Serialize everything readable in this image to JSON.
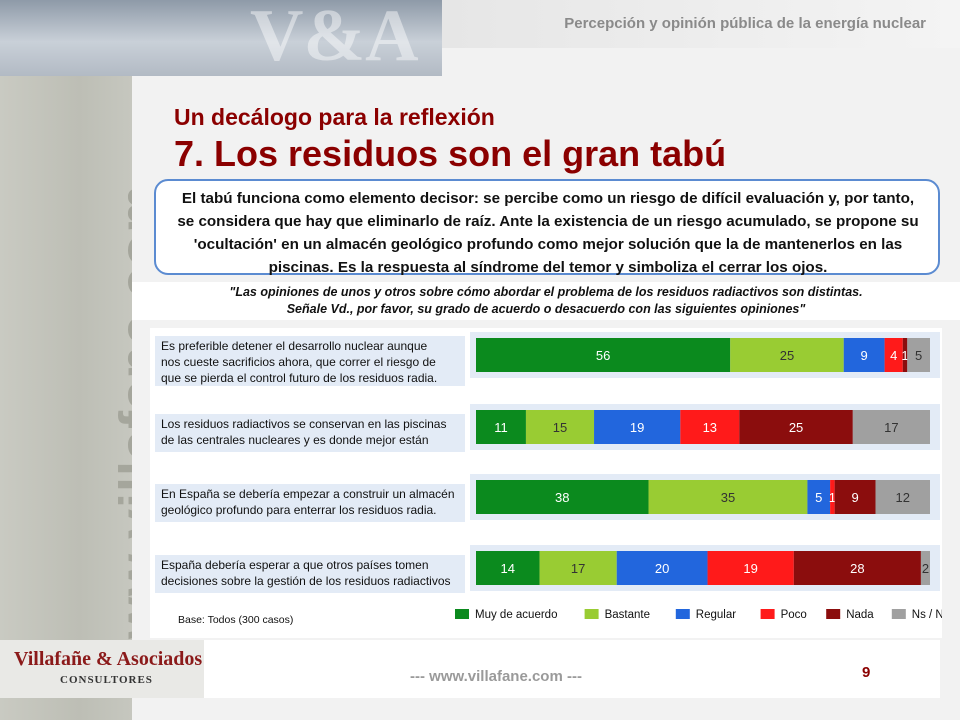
{
  "header": {
    "title": "Percepción y opinión pública de la energía nuclear"
  },
  "sidebar": {
    "vertical_text": "www.villafane.com"
  },
  "slide": {
    "subtitle": "Un decálogo para la reflexión",
    "title": "7. Los residuos son el gran tabú",
    "intro_lines": [
      "El tabú funciona como elemento decisor: se percibe como un riesgo de difícil evaluación y, por tanto,",
      "se considera que hay que eliminarlo de raíz. Ante la existencia de un riesgo acumulado, se propone su",
      "'ocultación' en un almacén geológico profundo como mejor solución que la de mantenerlos en las",
      "piscinas. Es la respuesta al síndrome del temor y simboliza el cerrar los ojos."
    ],
    "question_lines": [
      "\"Las opiniones de unos y otros sobre cómo abordar el problema de los residuos radiactivos son distintas.",
      "Señale Vd., por favor, su grado de acuerdo o desacuerdo con las siguientes opiniones\""
    ],
    "base_note": "Base: Todos (300 casos)"
  },
  "chart_data": {
    "type": "bar",
    "orientation": "horizontal",
    "stacked": true,
    "categories": [
      [
        "Es preferible detener el desarrollo nuclear aunque",
        "nos cueste sacrificios ahora, que correr el riesgo de",
        "que se pierda el control futuro de los residuos radia."
      ],
      [
        "Los residuos radiactivos se conservan en las piscinas",
        "de las centrales nucleares y es donde mejor están"
      ],
      [
        "En España se debería empezar a construir un almacén",
        "geológico profundo para enterrar los residuos radia."
      ],
      [
        "España debería esperar a que otros países tomen",
        "decisiones sobre la gestión de los residuos radiactivos"
      ]
    ],
    "series": [
      {
        "name": "Muy de acuerdo",
        "color": "#0b8a1e",
        "values": [
          56,
          11,
          38,
          14
        ]
      },
      {
        "name": "Bastante",
        "color": "#99cc33",
        "values": [
          25,
          15,
          35,
          17
        ]
      },
      {
        "name": "Regular",
        "color": "#2266dd",
        "values": [
          9,
          19,
          5,
          20
        ]
      },
      {
        "name": "Poco",
        "color": "#ff1a1a",
        "values": [
          4,
          13,
          1,
          19
        ]
      },
      {
        "name": "Nada",
        "color": "#8b0d0d",
        "values": [
          1,
          25,
          9,
          28
        ]
      },
      {
        "name": "Ns / Nc",
        "color": "#a0a0a0",
        "values": [
          5,
          17,
          12,
          2
        ]
      }
    ],
    "legend_position": "bottom-right"
  },
  "footer": {
    "logo_name": "Villafañe & Asociados",
    "logo_tagline": "CONSULTORES",
    "url": "--- www.villafane.com ---",
    "page_number": "9"
  }
}
